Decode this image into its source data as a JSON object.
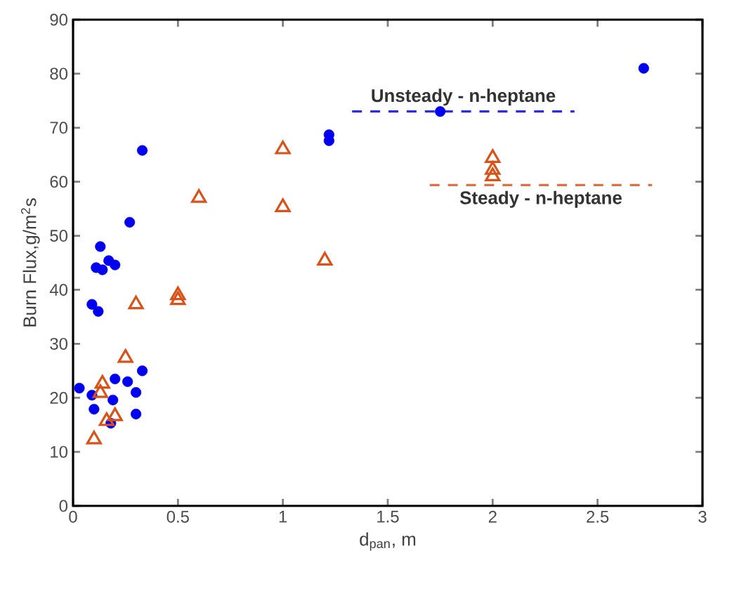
{
  "chart_data": {
    "type": "scatter",
    "xlabel": "d$_{pan}$, m",
    "ylabel": "Burn Flux,g/m$^{2}$s",
    "xlim": [
      0,
      3
    ],
    "xticks": [
      0,
      0.5,
      1,
      1.5,
      2,
      2.5,
      3
    ],
    "ylim": [
      0,
      90
    ],
    "yticks": [
      0,
      10,
      20,
      30,
      40,
      50,
      60,
      70,
      80,
      90
    ],
    "series": [
      {
        "marker": "circle",
        "color": "#0000ee",
        "x": [
          2.72,
          1.75,
          1.22,
          1.22,
          0.33,
          0.27,
          0.13,
          0.11,
          0.14,
          0.17,
          0.2,
          0.09,
          0.12,
          0.03,
          0.33,
          0.2,
          0.26,
          0.3,
          0.19,
          0.1,
          0.3,
          0.18,
          0.09
        ],
        "values": [
          81,
          73,
          68.7,
          67.6,
          65.8,
          52.5,
          48,
          44.1,
          43.7,
          45.4,
          44.6,
          37.3,
          36,
          21.8,
          25,
          23.5,
          23,
          21,
          19.6,
          17.9,
          17,
          15.3,
          20.5
        ]
      },
      {
        "marker": "triangle",
        "color": "#d95319",
        "x": [
          1.0,
          0.6,
          1.0,
          1.2,
          0.5,
          0.5,
          0.3,
          0.25,
          0.14,
          0.13,
          0.2,
          0.16,
          0.1,
          2.0,
          2.0,
          2.0
        ],
        "values": [
          66,
          57,
          55.3,
          45.4,
          39,
          38.1,
          37.3,
          27.4,
          22.6,
          20.9,
          16.6,
          15.7,
          12.3,
          64.4,
          62.2,
          61
        ]
      },
      {
        "type": "line",
        "name": "Unsteady - n-heptane",
        "line_style": "dashed",
        "marker": "none",
        "color": "#2b2bee",
        "x": [
          1.33,
          2.39
        ],
        "values": [
          73,
          73
        ]
      },
      {
        "type": "line",
        "name": "Steady - n-heptane",
        "line_style": "dashed",
        "marker": "none",
        "color": "#e07040",
        "x": [
          1.7,
          2.76
        ],
        "values": [
          59.4,
          59.4
        ]
      }
    ]
  }
}
